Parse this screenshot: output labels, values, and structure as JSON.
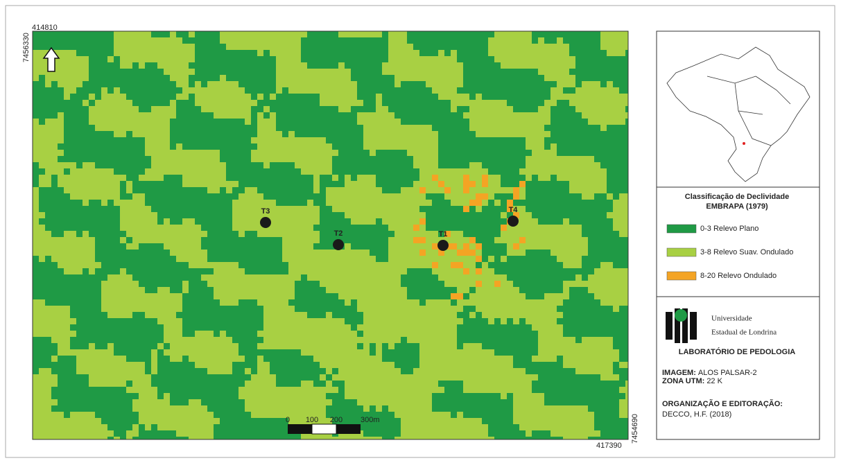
{
  "map": {
    "corner_coordinates": {
      "top_left_x": 414810,
      "top_left_y": 7456330,
      "bottom_right_y": 7454690,
      "bottom_right_x": 417390
    },
    "points": [
      {
        "label": "T1"
      },
      {
        "label": "T2"
      },
      {
        "label": "T3"
      },
      {
        "label": "T4"
      }
    ],
    "scale_bar": {
      "labels": [
        "0",
        "100",
        "200",
        "300m"
      ]
    }
  },
  "legend": {
    "title": "Classificação de Declividade",
    "subtitle": "EMBRAPA (1979)",
    "items": [
      {
        "label": "0-3 Relevo Plano",
        "color": "#1f9a45"
      },
      {
        "label": "3-8 Relevo Suav. Ondulado",
        "color": "#a8d043"
      },
      {
        "label": "8-20 Relevo Ondulado",
        "color": "#f4a424"
      }
    ]
  },
  "institution": {
    "name_line1": "Universidade",
    "name_line2": "Estadual de Londrina",
    "lab": "LABORATÓRIO DE PEDOLOGIA"
  },
  "metadata": [
    {
      "key": "IMAGEM:",
      "value": "ALOS PALSAR-2"
    },
    {
      "key": "ZONA UTM:",
      "value": "22 K"
    }
  ],
  "credits": {
    "key": "ORGANIZAÇÃO E EDITORAÇÃO:",
    "value": "DECCO, H.F. (2018)"
  }
}
